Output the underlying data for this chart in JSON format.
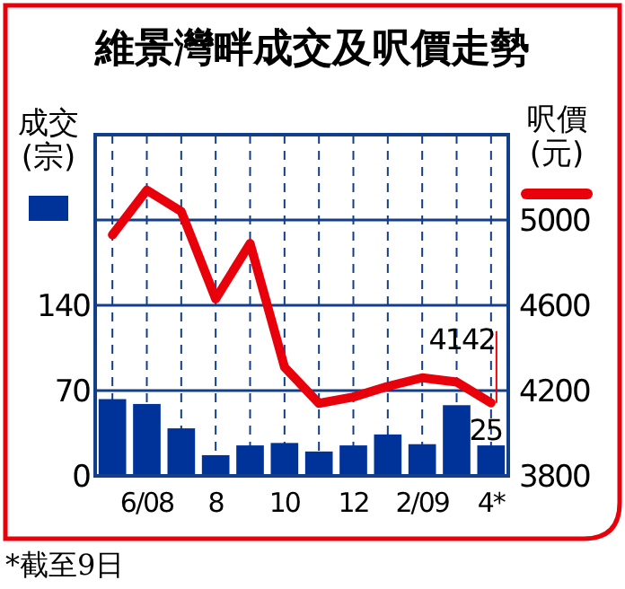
{
  "chart_data": {
    "type": "bar",
    "title": "維景灣畔成交及呎價走勢",
    "ylabel": "成交\n(宗)",
    "y2label": "呎價\n(元)",
    "categories": [
      null,
      "6/08",
      null,
      "8",
      null,
      "10",
      null,
      "12",
      null,
      "2/09",
      null,
      "4*"
    ],
    "series": [
      {
        "color": "#003399",
        "values": [
          63,
          59,
          39,
          17,
          25,
          27,
          20,
          25,
          34,
          26,
          58,
          25
        ],
        "value_labels": [
          null,
          null,
          null,
          null,
          null,
          null,
          null,
          null,
          null,
          null,
          null,
          "25"
        ]
      },
      {
        "type": "line",
        "axis": "y2",
        "color": "#e8000b",
        "values": [
          4930,
          5140,
          5040,
          4630,
          4890,
          4310,
          4140,
          4170,
          4220,
          4260,
          4240,
          4142
        ],
        "value_labels": [
          null,
          null,
          null,
          null,
          null,
          null,
          null,
          null,
          null,
          null,
          null,
          "4142"
        ]
      }
    ],
    "ylim": [
      0,
      280
    ],
    "yticks": [
      0,
      70,
      140,
      {
        "value": 210,
        "label": null
      }
    ],
    "y2lim": [
      3800,
      5400
    ],
    "y2ticks": [
      3800,
      4200,
      4600,
      5000
    ],
    "grid": true,
    "annotations": [
      "*截至9日"
    ]
  }
}
